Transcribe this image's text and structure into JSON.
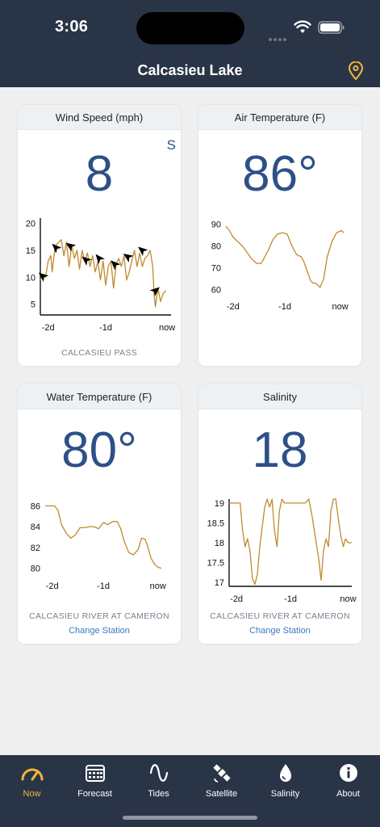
{
  "status_bar": {
    "time": "3:06"
  },
  "header": {
    "title": "Calcasieu Lake",
    "location_icon": "map-pin-icon",
    "accent": "#f0b73a"
  },
  "cards": {
    "wind": {
      "title": "Wind Speed (mph)",
      "value": "8",
      "direction": "S",
      "station": "CALCASIEU PASS"
    },
    "air": {
      "title": "Air Temperature (F)",
      "value": "86°"
    },
    "water": {
      "title": "Water Temperature (F)",
      "value": "80°",
      "station": "CALCASIEU RIVER AT CAMERON",
      "change_label": "Change Station"
    },
    "salinity": {
      "title": "Salinity",
      "value": "18",
      "station": "CALCASIEU RIVER AT CAMERON",
      "change_label": "Change Station"
    }
  },
  "chart_data": [
    {
      "id": "wind",
      "type": "line",
      "x_labels": [
        "-2d",
        "-1d",
        "now"
      ],
      "y_ticks": [
        5,
        10,
        15,
        20
      ],
      "ylim": [
        3,
        21
      ],
      "x": [
        0,
        0.02,
        0.04,
        0.06,
        0.08,
        0.09,
        0.1,
        0.11,
        0.12,
        0.14,
        0.16,
        0.18,
        0.2,
        0.22,
        0.24,
        0.26,
        0.28,
        0.3,
        0.32,
        0.34,
        0.36,
        0.38,
        0.4,
        0.42,
        0.44,
        0.46,
        0.48,
        0.5,
        0.52,
        0.54,
        0.56,
        0.58,
        0.6,
        0.62,
        0.64,
        0.66,
        0.68,
        0.7,
        0.72,
        0.74,
        0.76,
        0.78,
        0.8,
        0.82,
        0.84,
        0.86,
        0.87,
        0.88,
        0.9,
        0.92,
        0.94,
        0.96
      ],
      "values": [
        9.5,
        10.5,
        10,
        13,
        14,
        11,
        13,
        15,
        16,
        16.5,
        17,
        14,
        16.5,
        12,
        16,
        13.5,
        15,
        11.5,
        15,
        13,
        14.5,
        12,
        14,
        11,
        13,
        9.5,
        13,
        8.5,
        12,
        13,
        8,
        12.5,
        13.5,
        12,
        14,
        9.5,
        11,
        13,
        15,
        12,
        14.5,
        12,
        13.5,
        14,
        15,
        12,
        7,
        4.5,
        8,
        5.5,
        7,
        7.5
      ],
      "arrows": [
        {
          "x": 0.02,
          "y": 10.2,
          "angle": 220
        },
        {
          "x": 0.12,
          "y": 15.5,
          "angle": 225
        },
        {
          "x": 0.23,
          "y": 15.8,
          "angle": 215
        },
        {
          "x": 0.35,
          "y": 13.2,
          "angle": 220
        },
        {
          "x": 0.45,
          "y": 13.5,
          "angle": 230
        },
        {
          "x": 0.57,
          "y": 12.4,
          "angle": 225
        },
        {
          "x": 0.67,
          "y": 13.8,
          "angle": 215
        },
        {
          "x": 0.78,
          "y": 15,
          "angle": 220
        },
        {
          "x": 0.88,
          "y": 7.5,
          "angle": 320
        }
      ]
    },
    {
      "id": "air",
      "type": "line",
      "x_labels": [
        "-2d",
        "-1d",
        "now"
      ],
      "y_ticks": [
        60,
        70,
        80,
        90
      ],
      "ylim": [
        58,
        92
      ],
      "x": [
        0,
        0.03,
        0.06,
        0.1,
        0.14,
        0.18,
        0.22,
        0.26,
        0.3,
        0.33,
        0.36,
        0.4,
        0.44,
        0.48,
        0.52,
        0.56,
        0.6,
        0.64,
        0.66,
        0.68,
        0.7,
        0.72,
        0.74,
        0.76,
        0.78,
        0.8,
        0.83,
        0.86,
        0.9,
        0.94,
        0.98,
        1
      ],
      "values": [
        89,
        87,
        84,
        82,
        80,
        77,
        74,
        72,
        72,
        75,
        78,
        83,
        85.5,
        86,
        85.5,
        80,
        76,
        75,
        73,
        70,
        67,
        64,
        63,
        63,
        62,
        61,
        65,
        75,
        82,
        86,
        87,
        86
      ],
      "series_color": "#c08a2e"
    },
    {
      "id": "water",
      "type": "line",
      "x_labels": [
        "-2d",
        "-1d",
        "now"
      ],
      "y_ticks": [
        80,
        82,
        84,
        86
      ],
      "ylim": [
        79.5,
        86.5
      ],
      "x": [
        0,
        0.04,
        0.08,
        0.11,
        0.14,
        0.18,
        0.22,
        0.26,
        0.3,
        0.34,
        0.38,
        0.42,
        0.46,
        0.5,
        0.54,
        0.58,
        0.62,
        0.65,
        0.68,
        0.72,
        0.76,
        0.8,
        0.83,
        0.86,
        0.88,
        0.91,
        0.94,
        0.97,
        1
      ],
      "values": [
        86,
        86,
        86,
        85.6,
        84.2,
        83.4,
        82.9,
        83.2,
        83.9,
        83.9,
        84,
        84,
        83.8,
        84.4,
        84.2,
        84.5,
        84.5,
        83.8,
        82.6,
        81.5,
        81.3,
        81.8,
        82.9,
        82.8,
        82.2,
        81,
        80.4,
        80.1,
        80
      ],
      "series_color": "#c08a2e"
    },
    {
      "id": "salinity",
      "type": "line",
      "x_labels": [
        "-2d",
        "-1d",
        "now"
      ],
      "y_ticks": [
        17,
        17.5,
        18,
        18.5,
        19
      ],
      "ylim": [
        16.9,
        19.1
      ],
      "x": [
        0,
        0.03,
        0.06,
        0.09,
        0.11,
        0.13,
        0.15,
        0.17,
        0.19,
        0.21,
        0.23,
        0.25,
        0.27,
        0.29,
        0.31,
        0.33,
        0.35,
        0.37,
        0.39,
        0.41,
        0.43,
        0.45,
        0.47,
        0.5,
        0.53,
        0.56,
        0.59,
        0.62,
        0.65,
        0.68,
        0.71,
        0.73,
        0.75,
        0.77,
        0.79,
        0.81,
        0.83,
        0.85,
        0.87,
        0.89,
        0.91,
        0.93,
        0.95,
        0.97,
        1
      ],
      "values": [
        19,
        19,
        19,
        19,
        18.3,
        17.9,
        18.1,
        17.8,
        17.1,
        16.95,
        17.2,
        17.9,
        18.4,
        18.9,
        19.1,
        18.9,
        19.1,
        18.3,
        17.9,
        18.8,
        19.1,
        19,
        19,
        19,
        19,
        19,
        19,
        19,
        19.1,
        18.6,
        18,
        17.6,
        17.05,
        17.8,
        18.1,
        17.9,
        18.8,
        19.1,
        19.1,
        18.6,
        18.2,
        17.9,
        18.1,
        18,
        18
      ]
    }
  ]
}
